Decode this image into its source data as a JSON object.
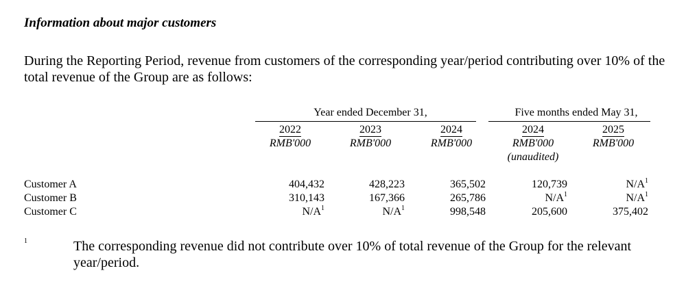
{
  "heading": "Information about major customers",
  "intro": "During the Reporting Period, revenue from customers of the corresponding year/period contributing over 10% of the total revenue of the Group are as follows:",
  "groups": [
    {
      "label": "Year ended December 31,"
    },
    {
      "label": "Five months ended May 31,"
    }
  ],
  "columns": [
    {
      "year": "2022",
      "unit": "RMB'000",
      "note": ""
    },
    {
      "year": "2023",
      "unit": "RMB'000",
      "note": ""
    },
    {
      "year": "2024",
      "unit": "RMB'000",
      "note": ""
    },
    {
      "year": "2024",
      "unit": "RMB'000",
      "note": "(unaudited)"
    },
    {
      "year": "2025",
      "unit": "RMB'000",
      "note": ""
    }
  ],
  "rows": [
    {
      "label": "Customer A",
      "values": [
        "404,432",
        "428,223",
        "365,502",
        "120,739",
        "N/A"
      ],
      "footnoted": [
        false,
        false,
        false,
        false,
        true
      ]
    },
    {
      "label": "Customer B",
      "values": [
        "310,143",
        "167,366",
        "265,786",
        "N/A",
        "N/A"
      ],
      "footnoted": [
        false,
        false,
        false,
        true,
        true
      ]
    },
    {
      "label": "Customer C",
      "values": [
        "N/A",
        "N/A",
        "998,548",
        "205,600",
        "375,402"
      ],
      "footnoted": [
        true,
        true,
        false,
        false,
        false
      ]
    }
  ],
  "footnote": {
    "mark": "1",
    "text": "The corresponding revenue did not contribute over 10% of total revenue of the Group for the relevant year/period."
  }
}
